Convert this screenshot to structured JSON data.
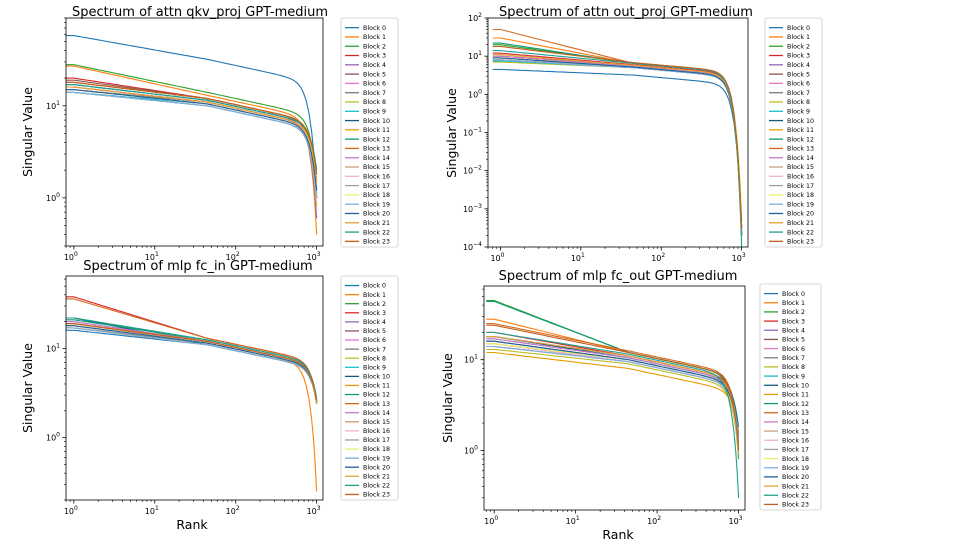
{
  "chart_data": [
    {
      "type": "line",
      "title": "Spectrum of attn qkv_proj GPT-medium",
      "xlabel": "",
      "ylabel": "Singular Value",
      "xscale": "log",
      "yscale": "log",
      "xlim": [
        0.8,
        1200
      ],
      "ylim": [
        0.3,
        90
      ],
      "x_ticks": [
        {
          "v": 1,
          "base": "10",
          "exp": "0"
        },
        {
          "v": 10,
          "base": "10",
          "exp": "1"
        },
        {
          "v": 100,
          "base": "10",
          "exp": "2"
        },
        {
          "v": 1000,
          "base": "10",
          "exp": "3"
        }
      ],
      "y_ticks": [
        {
          "v": 1,
          "base": "10",
          "exp": "0"
        },
        {
          "v": 10,
          "base": "10",
          "exp": "1"
        }
      ],
      "grid": false,
      "legend_position": "outside-right",
      "series_names": [
        "Block 0",
        "Block 1",
        "Block 2",
        "Block 3",
        "Block 4",
        "Block 5",
        "Block 6",
        "Block 7",
        "Block 8",
        "Block 9",
        "Block 10",
        "Block 11",
        "Block 12",
        "Block 13",
        "Block 14",
        "Block 15",
        "Block 16",
        "Block 17",
        "Block 18",
        "Block 19",
        "Block 20",
        "Block 21",
        "Block 22",
        "Block 23"
      ],
      "series_start": [
        58,
        27,
        28,
        20,
        17,
        19,
        16,
        15,
        15,
        14,
        14,
        16,
        17,
        18,
        16,
        15,
        15,
        14,
        15,
        14,
        15,
        16,
        17,
        18
      ],
      "series_mid": [
        32,
        13,
        14,
        12,
        11.5,
        12,
        11,
        11,
        10.5,
        10.5,
        10,
        11,
        11.5,
        12,
        11,
        10.5,
        10.5,
        10,
        10.5,
        10,
        10.5,
        11,
        11.5,
        12
      ],
      "series_end": [
        1.0,
        0.4,
        1.5,
        1.2,
        0.6,
        1.0,
        0.8,
        1.0,
        0.8,
        1.3,
        1.0,
        1.8,
        2.0,
        1.5,
        1.2,
        1.1,
        0.9,
        1.0,
        1.4,
        1.1,
        1.2,
        1.6,
        2.0,
        1.8
      ]
    },
    {
      "type": "line",
      "title": "Spectrum of attn out_proj GPT-medium",
      "xlabel": "",
      "ylabel": "Singular Value",
      "xscale": "log",
      "yscale": "log",
      "xlim": [
        0.7,
        1200
      ],
      "ylim": [
        0.0001,
        100
      ],
      "x_ticks": [
        {
          "v": 1,
          "base": "10",
          "exp": "0"
        },
        {
          "v": 10,
          "base": "10",
          "exp": "1"
        },
        {
          "v": 100,
          "base": "10",
          "exp": "2"
        },
        {
          "v": 1000,
          "base": "10",
          "exp": "3"
        }
      ],
      "y_ticks": [
        {
          "v": 0.0001,
          "base": "10",
          "exp": "−4"
        },
        {
          "v": 0.001,
          "base": "10",
          "exp": "−3"
        },
        {
          "v": 0.01,
          "base": "10",
          "exp": "−2"
        },
        {
          "v": 0.1,
          "base": "10",
          "exp": "−1"
        },
        {
          "v": 1,
          "base": "10",
          "exp": "0"
        },
        {
          "v": 10,
          "base": "10",
          "exp": "1"
        },
        {
          "v": 100,
          "base": "10",
          "exp": "2"
        }
      ],
      "grid": false,
      "legend_position": "outside-right",
      "series_names": [
        "Block 0",
        "Block 1",
        "Block 2",
        "Block 3",
        "Block 4",
        "Block 5",
        "Block 6",
        "Block 7",
        "Block 8",
        "Block 9",
        "Block 10",
        "Block 11",
        "Block 12",
        "Block 13",
        "Block 14",
        "Block 15",
        "Block 16",
        "Block 17",
        "Block 18",
        "Block 19",
        "Block 20",
        "Block 21",
        "Block 22",
        "Block 23"
      ],
      "series_start": [
        4.5,
        30,
        20,
        12,
        9,
        10,
        8,
        8,
        7,
        7.5,
        8,
        9,
        22,
        50,
        10,
        9,
        8,
        8,
        9,
        8,
        9,
        11,
        14,
        18
      ],
      "series_mid": [
        3.2,
        6.5,
        6.5,
        6,
        5.5,
        5.8,
        5.2,
        5.2,
        5,
        5,
        5,
        5.5,
        6.5,
        6.5,
        5.5,
        5.2,
        5,
        5,
        5.2,
        5,
        5.2,
        5.8,
        6.5,
        6.8
      ],
      "series_end": [
        0.0003,
        0.0002,
        0.0005,
        0.0003,
        0.0002,
        0.0002,
        0.0003,
        0.0002,
        0.0005,
        0.0003,
        0.0002,
        0.0002,
        0.0001,
        0.0003,
        0.0002,
        0.0002,
        0.0003,
        0.0002,
        0.0008,
        0.0003,
        0.0002,
        0.0002,
        0.0002,
        0.0003
      ]
    },
    {
      "type": "line",
      "title": "Spectrum of mlp fc_in GPT-medium",
      "xlabel": "Rank",
      "ylabel": "Singular Value",
      "xscale": "log",
      "yscale": "log",
      "xlim": [
        0.8,
        1200
      ],
      "ylim": [
        0.2,
        65
      ],
      "x_ticks": [
        {
          "v": 1,
          "base": "10",
          "exp": "0"
        },
        {
          "v": 10,
          "base": "10",
          "exp": "1"
        },
        {
          "v": 100,
          "base": "10",
          "exp": "2"
        },
        {
          "v": 1000,
          "base": "10",
          "exp": "3"
        }
      ],
      "y_ticks": [
        {
          "v": 1,
          "base": "10",
          "exp": "0"
        },
        {
          "v": 10,
          "base": "10",
          "exp": "1"
        }
      ],
      "grid": false,
      "legend_position": "outside-right",
      "series_names": [
        "Block 0",
        "Block 1",
        "Block 2",
        "Block 3",
        "Block 4",
        "Block 5",
        "Block 6",
        "Block 7",
        "Block 8",
        "Block 9",
        "Block 10",
        "Block 11",
        "Block 12",
        "Block 13",
        "Block 14",
        "Block 15",
        "Block 16",
        "Block 17",
        "Block 18",
        "Block 19",
        "Block 20",
        "Block 21",
        "Block 22",
        "Block 23"
      ],
      "series_start": [
        16,
        17,
        22,
        38,
        20,
        19,
        18,
        17,
        17,
        18,
        22,
        19,
        21,
        36,
        20,
        19,
        18,
        17,
        18,
        17,
        18,
        19,
        22,
        19
      ],
      "series_mid": [
        11,
        11.5,
        12,
        13,
        12,
        12,
        11.5,
        11.5,
        11,
        11.5,
        11,
        12,
        12.5,
        13,
        12,
        11.5,
        11.5,
        11,
        11.5,
        11,
        11.5,
        12,
        12.5,
        12
      ],
      "series_end": [
        2.5,
        0.25,
        2.8,
        2.6,
        2.5,
        2.4,
        2.6,
        2.5,
        2.7,
        2.6,
        2.5,
        2.4,
        2.7,
        2.6,
        2.5,
        2.4,
        2.6,
        2.5,
        2.7,
        2.6,
        2.5,
        2.4,
        2.7,
        2.6
      ]
    },
    {
      "type": "line",
      "title": "Spectrum of mlp fc_out GPT-medium",
      "xlabel": "Rank",
      "ylabel": "Singular Value",
      "xscale": "log",
      "yscale": "log",
      "xlim": [
        0.75,
        1200
      ],
      "ylim": [
        0.22,
        65
      ],
      "x_ticks": [
        {
          "v": 1,
          "base": "10",
          "exp": "0"
        },
        {
          "v": 10,
          "base": "10",
          "exp": "1"
        },
        {
          "v": 100,
          "base": "10",
          "exp": "2"
        },
        {
          "v": 1000,
          "base": "10",
          "exp": "3"
        }
      ],
      "y_ticks": [
        {
          "v": 1,
          "base": "10",
          "exp": "0"
        },
        {
          "v": 10,
          "base": "10",
          "exp": "1"
        }
      ],
      "grid": false,
      "legend_position": "outside-right",
      "series_names": [
        "Block 0",
        "Block 1",
        "Block 2",
        "Block 3",
        "Block 4",
        "Block 5",
        "Block 6",
        "Block 7",
        "Block 8",
        "Block 9",
        "Block 10",
        "Block 11",
        "Block 12",
        "Block 13",
        "Block 14",
        "Block 15",
        "Block 16",
        "Block 17",
        "Block 18",
        "Block 19",
        "Block 20",
        "Block 21",
        "Block 22",
        "Block 23"
      ],
      "series_start": [
        18,
        28,
        45,
        20,
        17,
        16,
        15,
        14,
        13,
        15,
        18,
        12,
        44,
        25,
        17,
        16,
        15,
        14,
        15,
        14,
        16,
        18,
        20,
        24
      ],
      "series_mid": [
        11,
        12,
        12,
        11,
        10.5,
        10,
        9.5,
        9.5,
        9,
        10,
        10.5,
        8,
        12,
        12.5,
        10.5,
        10,
        9.5,
        9.5,
        10,
        9.5,
        10,
        11,
        11.5,
        12
      ],
      "series_end": [
        1.8,
        1.2,
        0.8,
        1.5,
        1.0,
        1.2,
        1.4,
        1.0,
        0.9,
        1.3,
        1.5,
        1.6,
        1.4,
        1.2,
        1.0,
        0.9,
        1.3,
        1.1,
        1.0,
        1.4,
        1.2,
        1.1,
        0.3,
        1.0
      ]
    }
  ],
  "palette": [
    "#1f77b4",
    "#ff7f0e",
    "#2ca02c",
    "#d62728",
    "#9467bd",
    "#8c564b",
    "#e377c2",
    "#7f7f7f",
    "#bcbd22",
    "#17becf",
    "#0b5e7a",
    "#e69b00",
    "#109a7a",
    "#d2691e",
    "#c77cc7",
    "#c8a080",
    "#f0b0d0",
    "#a0a0a0",
    "#eeee66",
    "#7fb0e0",
    "#1f5f9f",
    "#e8a030",
    "#20a090",
    "#c06020"
  ]
}
